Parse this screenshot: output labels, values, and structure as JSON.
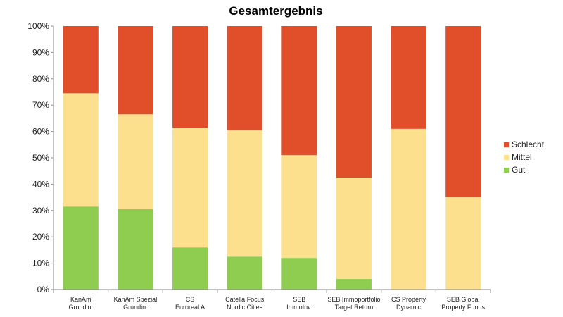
{
  "chart_data": {
    "type": "bar",
    "stacked": true,
    "title": "Gesamtergebnis",
    "categories": [
      [
        "KanAm",
        "Grundin."
      ],
      [
        "KanAm Spezial",
        "Grundin."
      ],
      [
        "CS",
        "Euroreal A"
      ],
      [
        "Catella Focus",
        "Nordic Cities"
      ],
      [
        "SEB",
        "ImmoInv."
      ],
      [
        "SEB Immoportfolio",
        "Target Return"
      ],
      [
        "CS Property",
        "Dynamic"
      ],
      [
        "SEB Global",
        "Property Funds"
      ]
    ],
    "series": [
      {
        "name": "Gut",
        "color": "#8fcd50",
        "values": [
          31.5,
          30.5,
          16,
          12.5,
          12,
          4,
          0,
          0
        ]
      },
      {
        "name": "Mittel",
        "color": "#fde08e",
        "values": [
          43,
          36,
          45.5,
          48,
          39,
          38.5,
          61,
          35
        ]
      },
      {
        "name": "Schlecht",
        "color": "#e04e2a",
        "values": [
          25.5,
          33.5,
          38.5,
          39.5,
          49,
          57.5,
          39,
          65
        ]
      }
    ],
    "legend_order": [
      "Schlecht",
      "Mittel",
      "Gut"
    ],
    "legend_position": "right",
    "ylim": [
      0,
      100
    ],
    "yticks": [
      "0%",
      "10%",
      "20%",
      "30%",
      "40%",
      "50%",
      "60%",
      "70%",
      "80%",
      "90%",
      "100%"
    ],
    "grid": false
  }
}
